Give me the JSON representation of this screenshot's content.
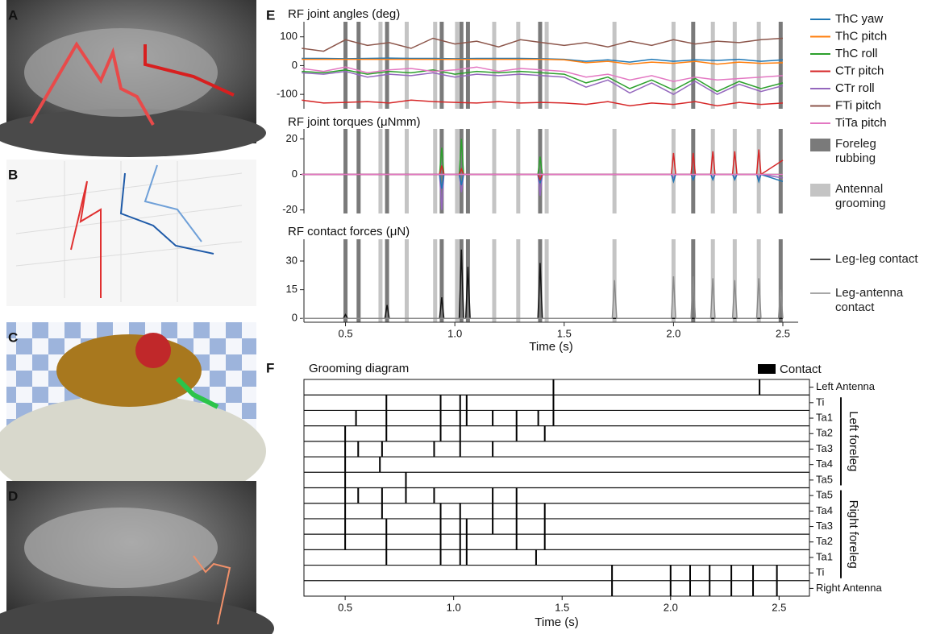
{
  "panel_labels": [
    "A",
    "B",
    "C",
    "D",
    "E",
    "F"
  ],
  "shading": [
    {
      "name": "Foreleg rubbing",
      "color": "#7a7a7a",
      "times": [
        0.5,
        0.56,
        0.69,
        0.94,
        1.03,
        1.06,
        1.39,
        2.09,
        2.49
      ]
    },
    {
      "name": "Antennal grooming",
      "color": "#c4c4c4",
      "times": [
        0.66,
        0.78,
        0.91,
        1.01,
        1.18,
        1.29,
        1.42,
        1.73,
        2.0,
        2.18,
        2.28,
        2.39
      ]
    }
  ],
  "chart_data": [
    {
      "type": "line",
      "title": "RF joint angles (deg)",
      "x": [
        0.3,
        0.4,
        0.5,
        0.6,
        0.7,
        0.8,
        0.9,
        1.0,
        1.1,
        1.2,
        1.3,
        1.4,
        1.5,
        1.6,
        1.7,
        1.8,
        1.9,
        2.0,
        2.1,
        2.2,
        2.3,
        2.4,
        2.5
      ],
      "xlim": [
        0.31,
        2.57
      ],
      "ylim": [
        -150,
        130
      ],
      "yticks": [
        -100,
        0,
        100
      ],
      "series": [
        {
          "name": "ThC yaw",
          "color": "#1f77b4",
          "values": [
            25,
            25,
            24,
            25,
            26,
            25,
            25,
            24,
            25,
            25,
            25,
            24,
            22,
            15,
            20,
            12,
            22,
            15,
            20,
            18,
            22,
            15,
            20
          ]
        },
        {
          "name": "ThC pitch",
          "color": "#ff7f0e",
          "values": [
            22,
            22,
            22,
            22,
            22,
            22,
            22,
            22,
            22,
            22,
            22,
            22,
            20,
            10,
            15,
            5,
            12,
            8,
            15,
            5,
            12,
            8,
            10
          ]
        },
        {
          "name": "ThC roll",
          "color": "#2ca02c",
          "values": [
            -20,
            -25,
            -15,
            -30,
            -20,
            -25,
            -15,
            -30,
            -20,
            -25,
            -20,
            -25,
            -30,
            -60,
            -40,
            -80,
            -50,
            -85,
            -45,
            -90,
            -55,
            -80,
            -60
          ]
        },
        {
          "name": "CTr pitch",
          "color": "#d62728",
          "values": [
            -120,
            -130,
            -128,
            -125,
            -130,
            -120,
            -125,
            -128,
            -130,
            -125,
            -130,
            -128,
            -130,
            -135,
            -125,
            -140,
            -130,
            -135,
            -125,
            -140,
            -128,
            -135,
            -130
          ]
        },
        {
          "name": "CTr roll",
          "color": "#9467bd",
          "values": [
            -25,
            -30,
            -20,
            -40,
            -30,
            -35,
            -25,
            -40,
            -30,
            -35,
            -30,
            -35,
            -40,
            -75,
            -50,
            -95,
            -60,
            -100,
            -55,
            -100,
            -65,
            -90,
            -70
          ]
        },
        {
          "name": "FTi pitch",
          "color": "#8c564b",
          "values": [
            60,
            50,
            90,
            70,
            80,
            60,
            95,
            75,
            85,
            65,
            90,
            80,
            70,
            80,
            65,
            85,
            70,
            90,
            75,
            85,
            80,
            90,
            95
          ]
        },
        {
          "name": "TiTa pitch",
          "color": "#e377c2",
          "values": [
            -10,
            -20,
            -5,
            -25,
            -15,
            -10,
            -20,
            -15,
            -5,
            -20,
            -10,
            -15,
            -20,
            -40,
            -30,
            -50,
            -35,
            -55,
            -40,
            -50,
            -45,
            -40,
            -35
          ]
        }
      ]
    },
    {
      "type": "line",
      "title": "RF joint torques (μNmm)",
      "x": [
        0.3,
        0.93,
        0.94,
        0.95,
        1.02,
        1.03,
        1.04,
        1.38,
        1.39,
        1.4,
        1.99,
        2.0,
        2.01,
        2.08,
        2.09,
        2.1,
        2.17,
        2.18,
        2.19,
        2.27,
        2.28,
        2.29,
        2.38,
        2.39,
        2.4,
        2.5
      ],
      "xlim": [
        0.31,
        2.57
      ],
      "ylim": [
        -22,
        22
      ],
      "yticks": [
        -20,
        0,
        20
      ],
      "series": [
        {
          "color": "#2ca02c",
          "values": [
            0,
            0,
            15,
            0,
            0,
            20,
            0,
            0,
            10,
            0,
            0,
            0,
            0,
            0,
            0,
            0,
            0,
            0,
            0,
            0,
            0,
            0,
            0,
            0,
            0,
            0
          ]
        },
        {
          "color": "#9467bd",
          "values": [
            0,
            0,
            -20,
            0,
            0,
            -10,
            0,
            0,
            -12,
            0,
            0,
            -2,
            0,
            0,
            -2,
            0,
            0,
            -2,
            0,
            0,
            -2,
            0,
            0,
            -2,
            0,
            -2
          ]
        },
        {
          "color": "#1f77b4",
          "values": [
            0,
            0,
            -8,
            0,
            0,
            -6,
            0,
            0,
            -5,
            0,
            0,
            -4,
            0,
            0,
            -3,
            0,
            0,
            -3,
            0,
            0,
            -3,
            0,
            0,
            -4,
            0,
            -4
          ]
        },
        {
          "color": "#d62728",
          "values": [
            0,
            0,
            5,
            0,
            0,
            3,
            0,
            0,
            -3,
            0,
            0,
            12,
            0,
            0,
            12,
            0,
            0,
            13,
            0,
            0,
            13,
            0,
            0,
            14,
            0,
            8
          ]
        },
        {
          "color": "#e377c2",
          "values": [
            0,
            0,
            0,
            0,
            0,
            0,
            0,
            0,
            0,
            0,
            0,
            0,
            0,
            0,
            0,
            0,
            0,
            0,
            0,
            0,
            0,
            0,
            0,
            0,
            0,
            0
          ]
        }
      ]
    },
    {
      "type": "line",
      "title": "RF contact forces (μN)",
      "xlabel": "Time (s)",
      "x": [
        0.3,
        0.49,
        0.5,
        0.51,
        0.68,
        0.69,
        0.7,
        0.93,
        0.94,
        0.95,
        1.02,
        1.03,
        1.04,
        1.05,
        1.06,
        1.07,
        1.38,
        1.39,
        1.4,
        1.72,
        1.73,
        1.74,
        1.99,
        2.0,
        2.01,
        2.08,
        2.09,
        2.1,
        2.17,
        2.18,
        2.19,
        2.27,
        2.28,
        2.29,
        2.38,
        2.39,
        2.4,
        2.48,
        2.49,
        2.5
      ],
      "xlim": [
        0.31,
        2.57
      ],
      "ylim": [
        -2,
        38
      ],
      "yticks": [
        0,
        15,
        30
      ],
      "xticks": [
        0.5,
        {
          "value": 1,
          "label": "1.0"
        },
        1.5,
        {
          "value": 2,
          "label": "2.0"
        },
        2.5
      ],
      "series": [
        {
          "name": "Leg-leg contact",
          "color": "#111111",
          "values": [
            0,
            0,
            2,
            0,
            0,
            7,
            0,
            0,
            11,
            0,
            0,
            36,
            0,
            0,
            27,
            0,
            0,
            29,
            0,
            0,
            0,
            0,
            0,
            0,
            0,
            0,
            0,
            0,
            0,
            0,
            0,
            0,
            0,
            0,
            0,
            0,
            0,
            0,
            0,
            0
          ]
        },
        {
          "name": "Leg-antenna contact",
          "color": "#8a8a8a",
          "values": [
            0,
            0,
            0,
            0,
            0,
            0,
            0,
            0,
            0,
            0,
            0,
            0,
            0,
            0,
            0,
            0,
            0,
            0,
            0,
            0,
            20,
            0,
            0,
            22,
            0,
            0,
            22,
            0,
            0,
            21,
            0,
            0,
            20,
            0,
            0,
            21,
            0,
            0,
            15,
            0
          ]
        }
      ]
    },
    {
      "type": "event",
      "title": "Grooming diagram",
      "xlabel": "Time (s)",
      "marker_label": "Contact",
      "xlim": [
        0.31,
        2.64
      ],
      "xticks": [
        0.5,
        {
          "value": 1,
          "label": "1.0"
        },
        1.5,
        {
          "value": 2,
          "label": "2.0"
        },
        2.5
      ],
      "rows": [
        {
          "label": "Left Antenna",
          "times": [
            1.46,
            2.41
          ]
        },
        {
          "label": "Ti",
          "times": [
            0.69,
            0.94,
            1.03,
            1.06,
            1.46
          ]
        },
        {
          "label": "Ta1",
          "times": [
            0.55,
            0.69,
            0.94,
            1.03,
            1.06,
            1.18,
            1.29,
            1.39,
            1.46
          ]
        },
        {
          "label": "Ta2",
          "times": [
            0.5,
            0.69,
            0.94,
            1.03,
            1.29,
            1.42
          ]
        },
        {
          "label": "Ta3",
          "times": [
            0.5,
            0.56,
            0.67,
            0.91,
            1.03,
            1.18
          ]
        },
        {
          "label": "Ta4",
          "times": [
            0.5,
            0.66
          ]
        },
        {
          "label": "Ta5",
          "times": [
            0.5,
            0.78
          ]
        },
        {
          "label": "Ta5",
          "times": [
            0.5,
            0.56,
            0.67,
            0.78,
            0.91,
            1.18,
            1.29
          ]
        },
        {
          "label": "Ta4",
          "times": [
            0.5,
            0.67,
            0.94,
            1.03,
            1.18,
            1.29,
            1.42
          ]
        },
        {
          "label": "Ta3",
          "times": [
            0.5,
            0.69,
            0.94,
            1.03,
            1.06,
            1.18,
            1.29,
            1.42
          ]
        },
        {
          "label": "Ta2",
          "times": [
            0.5,
            0.69,
            0.94,
            1.03,
            1.06,
            1.29,
            1.42
          ]
        },
        {
          "label": "Ta1",
          "times": [
            0.69,
            0.94,
            1.03,
            1.06,
            1.38
          ]
        },
        {
          "label": "Ti",
          "times": [
            1.73,
            2.0,
            2.09,
            2.18,
            2.28,
            2.38,
            2.49
          ]
        },
        {
          "label": "Right Antenna",
          "times": [
            1.73,
            2.0,
            2.09,
            2.18,
            2.28,
            2.38,
            2.49
          ]
        }
      ],
      "groups": [
        {
          "label": "Left foreleg",
          "first": 1,
          "last": 6
        },
        {
          "label": "Right foreleg",
          "first": 7,
          "last": 12
        }
      ]
    }
  ]
}
